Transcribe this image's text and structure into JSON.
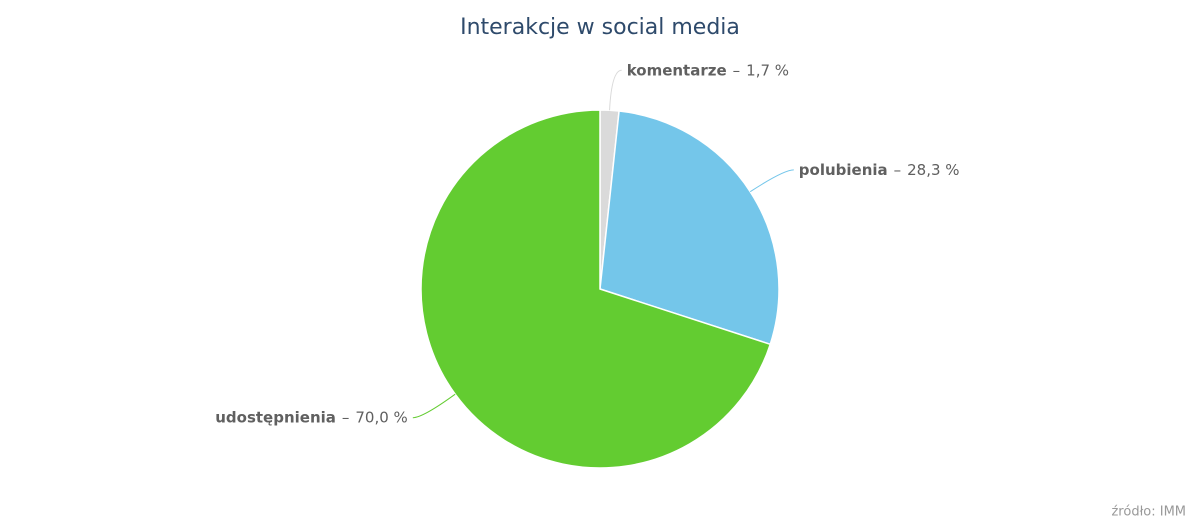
{
  "chart_data": {
    "type": "pie",
    "title": "Interakcje w social media",
    "categories": [
      "komentarze",
      "polubienia",
      "udostępnienia"
    ],
    "values": [
      1.7,
      28.3,
      70.0
    ],
    "value_labels": [
      "1,7 %",
      "28,3 %",
      "70,0 %"
    ],
    "label_separator": "–",
    "colors": [
      "#dadada",
      "#74c6ea",
      "#63cc31"
    ],
    "credits": "źródło: IMM"
  }
}
